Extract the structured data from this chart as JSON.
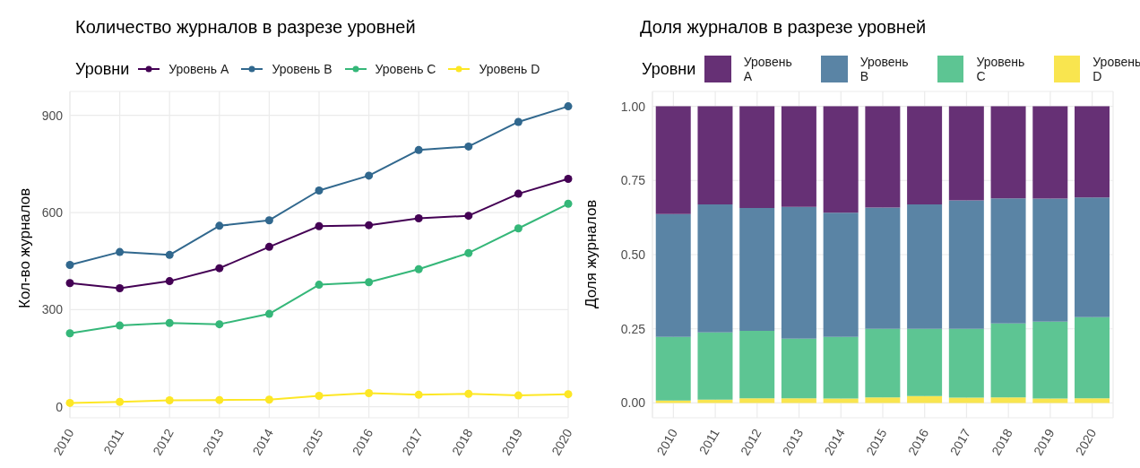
{
  "chart_data": [
    {
      "type": "line",
      "title": "Количество журналов в разрезе уровней",
      "ylabel": "Кол-во журналов",
      "legend_title": "Уровни",
      "legend": "top",
      "grid": true,
      "marker": "circle",
      "line_style": "solid",
      "categories": [
        "2010",
        "2011",
        "2012",
        "2013",
        "2014",
        "2015",
        "2016",
        "2017",
        "2018",
        "2019",
        "2020"
      ],
      "ylim": [
        -34,
        974
      ],
      "yticks": [
        0,
        300,
        600,
        900
      ],
      "series": [
        {
          "name": "Уровень A",
          "color": "#440154",
          "values": [
            382,
            366,
            388,
            428,
            494,
            558,
            561,
            582,
            590,
            658,
            704
          ]
        },
        {
          "name": "Уровень B",
          "color": "#31688e",
          "values": [
            438,
            478,
            469,
            559,
            576,
            668,
            714,
            793,
            804,
            880,
            928
          ]
        },
        {
          "name": "Уровень C",
          "color": "#35b779",
          "values": [
            227,
            251,
            259,
            255,
            287,
            377,
            385,
            425,
            475,
            551,
            627
          ]
        },
        {
          "name": "Уровень D",
          "color": "#fde725",
          "values": [
            12,
            15,
            20,
            21,
            22,
            34,
            42,
            37,
            40,
            35,
            39
          ]
        }
      ]
    },
    {
      "type": "bar",
      "stacked": true,
      "title": "Доля журналов в разрезе уровней",
      "ylabel": "Доля журналов",
      "legend_title": "Уровни",
      "legend": "top",
      "grid": true,
      "categories": [
        "2010",
        "2011",
        "2012",
        "2013",
        "2014",
        "2015",
        "2016",
        "2017",
        "2018",
        "2019",
        "2020"
      ],
      "ylim": [
        -0.05,
        1.05
      ],
      "yticks": [
        {
          "value": 0,
          "label": "0.00"
        },
        {
          "value": 0.25,
          "label": "0.25"
        },
        {
          "value": 0.5,
          "label": "0.50"
        },
        {
          "value": 0.75,
          "label": "0.75"
        },
        {
          "value": 1,
          "label": "1.00"
        }
      ],
      "series": [
        {
          "name": "Уровень D",
          "color": "#f9e54f",
          "values": [
            0.008,
            0.011,
            0.016,
            0.016,
            0.015,
            0.019,
            0.023,
            0.018,
            0.019,
            0.015,
            0.016
          ]
        },
        {
          "name": "Уровень C",
          "color": "#5dc593",
          "values": [
            0.215,
            0.227,
            0.227,
            0.201,
            0.208,
            0.231,
            0.227,
            0.232,
            0.249,
            0.259,
            0.273
          ]
        },
        {
          "name": "Уровень B",
          "color": "#5a84a5",
          "values": [
            0.414,
            0.431,
            0.414,
            0.444,
            0.418,
            0.409,
            0.419,
            0.433,
            0.422,
            0.415,
            0.404
          ]
        },
        {
          "name": "Уровень A",
          "color": "#663075",
          "values": [
            0.363,
            0.331,
            0.343,
            0.339,
            0.359,
            0.341,
            0.331,
            0.317,
            0.31,
            0.311,
            0.307
          ]
        }
      ]
    }
  ]
}
